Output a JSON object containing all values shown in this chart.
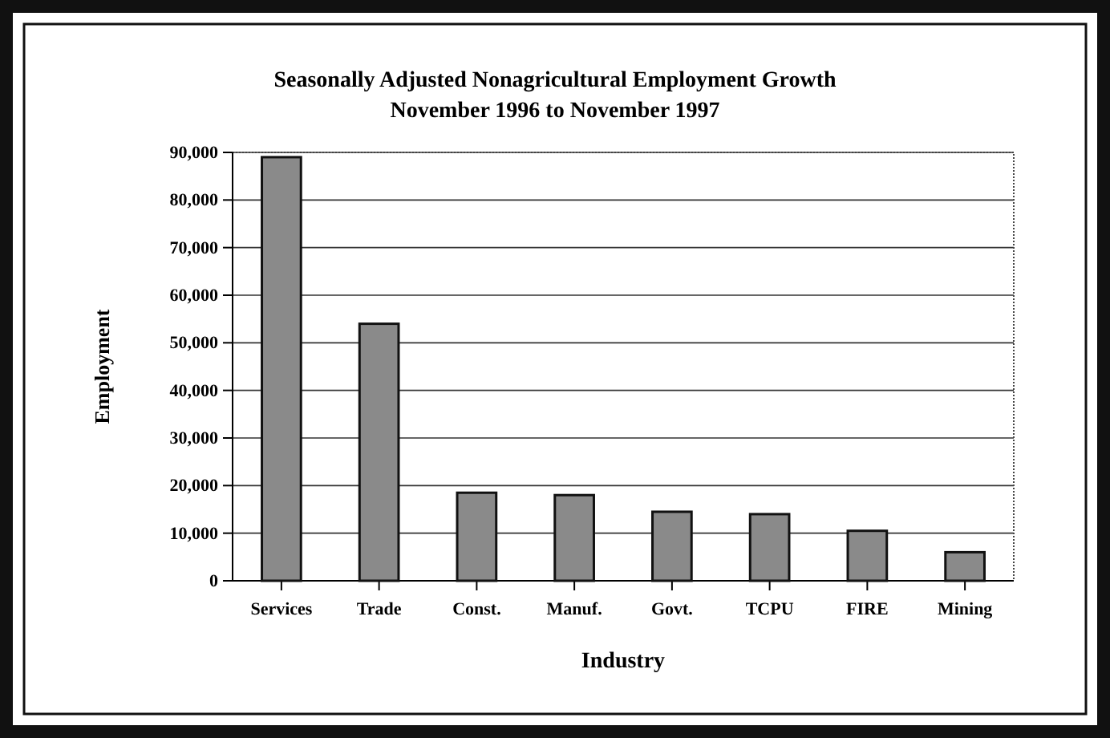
{
  "chart_data": {
    "type": "bar",
    "title": "Seasonally Adjusted Nonagricultural Employment Growth",
    "subtitle": "November 1996 to November 1997",
    "xlabel": "Industry",
    "ylabel": "Employment",
    "categories": [
      "Services",
      "Trade",
      "Const.",
      "Manuf.",
      "Govt.",
      "TCPU",
      "FIRE",
      "Mining"
    ],
    "values": [
      89000,
      54000,
      18500,
      18000,
      14500,
      14000,
      10500,
      6000
    ],
    "color": "#8a8a8a",
    "ylim": [
      0,
      90000
    ],
    "yticks": [
      {
        "value": 0,
        "label": "0"
      },
      {
        "value": 10000,
        "label": "10,000"
      },
      {
        "value": 20000,
        "label": "20,000"
      },
      {
        "value": 30000,
        "label": "30,000"
      },
      {
        "value": 40000,
        "label": "40,000"
      },
      {
        "value": 50000,
        "label": "50,000"
      },
      {
        "value": 60000,
        "label": "60,000"
      },
      {
        "value": 70000,
        "label": "70,000"
      },
      {
        "value": 80000,
        "label": "80,000"
      },
      {
        "value": 90000,
        "label": "90,000"
      }
    ],
    "grid": "y"
  }
}
